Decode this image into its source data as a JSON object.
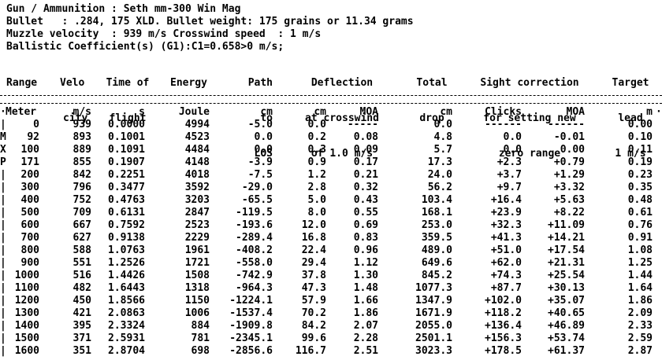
{
  "info": {
    "line1": "Gun / Ammunition : Seth mm-300 Win Mag",
    "line2": "Bullet   : .284, 175 XLD. Bullet weight: 175 grains or 11.34 grams",
    "line3": "Muzzle velocity  : 939 m/s Crosswind speed  : 1 m/s",
    "line4": "Ballistic Coefficient(s) (G1):C1=0.658>0 m/s;"
  },
  "headers": {
    "range": [
      "Range"
    ],
    "velocity": [
      "Velo",
      "city"
    ],
    "time": [
      "Time of",
      "flight"
    ],
    "energy": [
      "Energy"
    ],
    "path": [
      "Path",
      "to",
      "LOS"
    ],
    "deflection": [
      "Deflection",
      "at crosswind",
      "of 1.0 m/s"
    ],
    "drop": [
      "Total",
      "drop"
    ],
    "sight": [
      "Sight correction",
      "for setting new",
      "zero range"
    ],
    "lead": [
      "Target",
      "lead",
      "1 m/s"
    ]
  },
  "units": {
    "range": "Meter",
    "velocity": "m/s",
    "time": "s",
    "energy": "Joule",
    "path": "cm",
    "deflection_cm": "cm",
    "deflection_moa": "MOA",
    "drop": "cm",
    "clicks": "Clicks",
    "moa": "MOA",
    "lead": "m"
  },
  "rows": [
    {
      "mark": "|",
      "range": "0",
      "velocity": "939",
      "time": "0.0000",
      "energy": "4994",
      "path": "-5.0",
      "defl_cm": "0.0",
      "defl_moa": "-----",
      "drop": "0.0",
      "clicks": "------",
      "moa": "------",
      "lead": "0.00"
    },
    {
      "mark": "M",
      "range": "92",
      "velocity": "893",
      "time": "0.1001",
      "energy": "4523",
      "path": "0.0",
      "defl_cm": "0.2",
      "defl_moa": "0.08",
      "drop": "4.8",
      "clicks": "0.0",
      "moa": "-0.01",
      "lead": "0.10"
    },
    {
      "mark": "X",
      "range": "100",
      "velocity": "889",
      "time": "0.1091",
      "energy": "4484",
      "path": "0.0",
      "defl_cm": "0.3",
      "defl_moa": "0.09",
      "drop": "5.7",
      "clicks": "0.0",
      "moa": "0.00",
      "lead": "0.11"
    },
    {
      "mark": "P",
      "range": "171",
      "velocity": "855",
      "time": "0.1907",
      "energy": "4148",
      "path": "-3.9",
      "defl_cm": "0.9",
      "defl_moa": "0.17",
      "drop": "17.3",
      "clicks": "+2.3",
      "moa": "+0.79",
      "lead": "0.19"
    },
    {
      "mark": "|",
      "range": "200",
      "velocity": "842",
      "time": "0.2251",
      "energy": "4018",
      "path": "-7.5",
      "defl_cm": "1.2",
      "defl_moa": "0.21",
      "drop": "24.0",
      "clicks": "+3.7",
      "moa": "+1.29",
      "lead": "0.23"
    },
    {
      "mark": "|",
      "range": "300",
      "velocity": "796",
      "time": "0.3477",
      "energy": "3592",
      "path": "-29.0",
      "defl_cm": "2.8",
      "defl_moa": "0.32",
      "drop": "56.2",
      "clicks": "+9.7",
      "moa": "+3.32",
      "lead": "0.35"
    },
    {
      "mark": "|",
      "range": "400",
      "velocity": "752",
      "time": "0.4763",
      "energy": "3203",
      "path": "-65.5",
      "defl_cm": "5.0",
      "defl_moa": "0.43",
      "drop": "103.4",
      "clicks": "+16.4",
      "moa": "+5.63",
      "lead": "0.48"
    },
    {
      "mark": "|",
      "range": "500",
      "velocity": "709",
      "time": "0.6131",
      "energy": "2847",
      "path": "-119.5",
      "defl_cm": "8.0",
      "defl_moa": "0.55",
      "drop": "168.1",
      "clicks": "+23.9",
      "moa": "+8.22",
      "lead": "0.61"
    },
    {
      "mark": "|",
      "range": "600",
      "velocity": "667",
      "time": "0.7592",
      "energy": "2523",
      "path": "-193.6",
      "defl_cm": "12.0",
      "defl_moa": "0.69",
      "drop": "253.0",
      "clicks": "+32.3",
      "moa": "+11.09",
      "lead": "0.76"
    },
    {
      "mark": "|",
      "range": "700",
      "velocity": "627",
      "time": "0.9138",
      "energy": "2229",
      "path": "-289.4",
      "defl_cm": "16.8",
      "defl_moa": "0.83",
      "drop": "359.5",
      "clicks": "+41.3",
      "moa": "+14.21",
      "lead": "0.91"
    },
    {
      "mark": "|",
      "range": "800",
      "velocity": "588",
      "time": "1.0763",
      "energy": "1961",
      "path": "-408.2",
      "defl_cm": "22.4",
      "defl_moa": "0.96",
      "drop": "489.0",
      "clicks": "+51.0",
      "moa": "+17.54",
      "lead": "1.08"
    },
    {
      "mark": "|",
      "range": "900",
      "velocity": "551",
      "time": "1.2526",
      "energy": "1721",
      "path": "-558.0",
      "defl_cm": "29.4",
      "defl_moa": "1.12",
      "drop": "649.6",
      "clicks": "+62.0",
      "moa": "+21.31",
      "lead": "1.25"
    },
    {
      "mark": "|",
      "range": "1000",
      "velocity": "516",
      "time": "1.4426",
      "energy": "1508",
      "path": "-742.9",
      "defl_cm": "37.8",
      "defl_moa": "1.30",
      "drop": "845.2",
      "clicks": "+74.3",
      "moa": "+25.54",
      "lead": "1.44"
    },
    {
      "mark": "|",
      "range": "1100",
      "velocity": "482",
      "time": "1.6443",
      "energy": "1318",
      "path": "-964.3",
      "defl_cm": "47.3",
      "defl_moa": "1.48",
      "drop": "1077.3",
      "clicks": "+87.7",
      "moa": "+30.13",
      "lead": "1.64"
    },
    {
      "mark": "|",
      "range": "1200",
      "velocity": "450",
      "time": "1.8566",
      "energy": "1150",
      "path": "-1224.1",
      "defl_cm": "57.9",
      "defl_moa": "1.66",
      "drop": "1347.9",
      "clicks": "+102.0",
      "moa": "+35.07",
      "lead": "1.86"
    },
    {
      "mark": "|",
      "range": "1300",
      "velocity": "421",
      "time": "2.0863",
      "energy": "1006",
      "path": "-1537.4",
      "defl_cm": "70.2",
      "defl_moa": "1.86",
      "drop": "1671.9",
      "clicks": "+118.2",
      "moa": "+40.65",
      "lead": "2.09"
    },
    {
      "mark": "|",
      "range": "1400",
      "velocity": "395",
      "time": "2.3324",
      "energy": "884",
      "path": "-1909.8",
      "defl_cm": "84.2",
      "defl_moa": "2.07",
      "drop": "2055.0",
      "clicks": "+136.4",
      "moa": "+46.89",
      "lead": "2.33"
    },
    {
      "mark": "|",
      "range": "1500",
      "velocity": "371",
      "time": "2.5931",
      "energy": "781",
      "path": "-2345.1",
      "defl_cm": "99.6",
      "defl_moa": "2.28",
      "drop": "2501.1",
      "clicks": "+156.3",
      "moa": "+53.74",
      "lead": "2.59"
    },
    {
      "mark": "|",
      "range": "1600",
      "velocity": "351",
      "time": "2.8704",
      "energy": "698",
      "path": "-2856.6",
      "defl_cm": "116.7",
      "defl_moa": "2.51",
      "drop": "3023.3",
      "clicks": "+178.5",
      "moa": "+61.37",
      "lead": "2.87"
    }
  ]
}
